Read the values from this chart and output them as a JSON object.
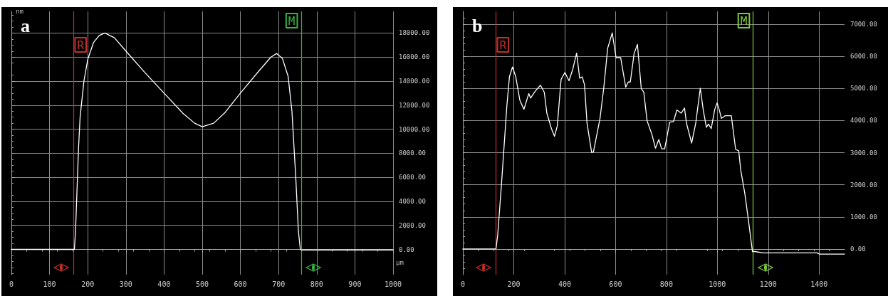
{
  "chart_data": [
    {
      "type": "line",
      "title": "a",
      "xlabel": "μm",
      "ylabel": "nm",
      "xlim": [
        0,
        1000
      ],
      "ylim": [
        -2100,
        19800
      ],
      "xticks": [
        0,
        100,
        200,
        300,
        400,
        500,
        600,
        700,
        800,
        900,
        1000
      ],
      "yticks": [
        {
          "value": 0,
          "label": "0.00"
        },
        {
          "value": 2000,
          "label": "2000.00"
        },
        {
          "value": 4000,
          "label": "4000.00"
        },
        {
          "value": 6000,
          "label": "6000.00"
        },
        {
          "value": 8000,
          "label": "8000.00"
        },
        {
          "value": 10000,
          "label": "10000.00"
        },
        {
          "value": 12000,
          "label": "12000.00"
        },
        {
          "value": 14000,
          "label": "14000.00"
        },
        {
          "value": 16000,
          "label": "16000.00"
        },
        {
          "value": 18000,
          "label": "18000.00"
        }
      ],
      "grid": true,
      "marker": "none",
      "line_style": "solid",
      "series": [
        {
          "color": "#ffffff",
          "x": [
            0,
            165,
            168,
            172,
            176,
            180,
            190,
            200,
            215,
            230,
            245,
            270,
            300,
            350,
            400,
            450,
            480,
            500,
            530,
            560,
            600,
            650,
            680,
            695,
            710,
            725,
            735,
            745,
            752,
            757,
            760,
            1000
          ],
          "values": [
            0,
            0,
            1500,
            5000,
            8500,
            11000,
            14000,
            15800,
            17200,
            17800,
            18000,
            17600,
            16500,
            14700,
            13000,
            11300,
            10500,
            10200,
            10500,
            11400,
            13000,
            14900,
            16000,
            16300,
            15900,
            14400,
            11500,
            6000,
            1500,
            0,
            -50,
            -50
          ]
        }
      ],
      "ref_lines": [
        {
          "axis": "x",
          "value": 163,
          "label": "R",
          "color": "#c0302a"
        },
        {
          "axis": "x",
          "value": 759,
          "label": "M",
          "color": "#3cb043"
        }
      ]
    },
    {
      "type": "line",
      "title": "b",
      "xlim": [
        0,
        1500
      ],
      "ylim": [
        -800,
        7400
      ],
      "xticks": [
        0,
        200,
        400,
        600,
        800,
        1000,
        1200,
        1400
      ],
      "yticks": [
        {
          "value": 0,
          "label": "0.00"
        },
        {
          "value": 1000,
          "label": "1000.00"
        },
        {
          "value": 2000,
          "label": "2000.00"
        },
        {
          "value": 3000,
          "label": "3000.00"
        },
        {
          "value": 4000,
          "label": "4000.00"
        },
        {
          "value": 5000,
          "label": "5000.00"
        },
        {
          "value": 6000,
          "label": "6000.00"
        },
        {
          "value": 7000,
          "label": "7000.00"
        }
      ],
      "grid": true,
      "marker": "none",
      "line_style": "solid",
      "series": [
        {
          "color": "#ffffff",
          "x": [
            0,
            81,
            86,
            130,
            137,
            152,
            173,
            183,
            195,
            208,
            224,
            240,
            259,
            266,
            285,
            305,
            320,
            330,
            348,
            360,
            371,
            386,
            401,
            417,
            432,
            447,
            459,
            469,
            478,
            488,
            506,
            513,
            539,
            554,
            569,
            587,
            602,
            620,
            640,
            650,
            658,
            673,
            686,
            701,
            711,
            724,
            742,
            757,
            770,
            781,
            793,
            813,
            828,
            841,
            858,
            871,
            879,
            899,
            915,
            933,
            945,
            957,
            965,
            976,
            990,
            999,
            1007,
            1016,
            1031,
            1055,
            1072,
            1084,
            1092,
            1108,
            1123,
            1138,
            1148,
            1179,
            1392,
            1402,
            1500
          ],
          "values": [
            0,
            0,
            0,
            0,
            440,
            2050,
            4470,
            5360,
            5670,
            5360,
            4630,
            4350,
            4840,
            4700,
            4920,
            5100,
            4880,
            4230,
            3750,
            3510,
            3830,
            5280,
            5500,
            5240,
            5600,
            6100,
            5320,
            5360,
            5120,
            3910,
            3010,
            3020,
            4070,
            5040,
            6250,
            6730,
            5960,
            5960,
            5040,
            5200,
            5200,
            6090,
            6370,
            5000,
            4880,
            3990,
            3590,
            3140,
            3410,
            3120,
            3120,
            3950,
            3970,
            4330,
            4230,
            4390,
            3910,
            3300,
            3910,
            5010,
            4310,
            3790,
            3890,
            3750,
            4350,
            4550,
            4350,
            4070,
            4150,
            4150,
            3100,
            3060,
            2460,
            1730,
            850,
            -80,
            -80,
            -120,
            -120,
            -160,
            -160
          ]
        }
      ],
      "ref_lines": [
        {
          "axis": "x",
          "value": 130,
          "label": "R",
          "color": "#c0302a"
        },
        {
          "axis": "x",
          "value": 1141,
          "label": "M",
          "color": "#7ac943"
        }
      ]
    }
  ]
}
